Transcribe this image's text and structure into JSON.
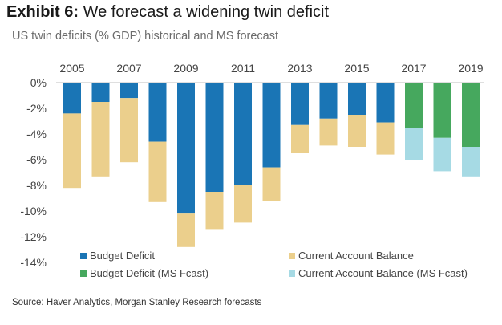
{
  "header": {
    "exhibit": "Exhibit 6:",
    "title": "We forecast a widening twin deficit"
  },
  "footer": {
    "source": "Source: Haver Analytics, Morgan Stanley Research forecasts"
  },
  "colors": {
    "budget": "#1a75b5",
    "current": "#ebcf8c",
    "budget_fcast": "#46a85e",
    "current_fcast": "#a6dae4"
  },
  "chart_data": {
    "type": "bar",
    "stacked": true,
    "title": "US twin deficits (% GDP) historical and MS forecast",
    "xlabel": "",
    "ylabel": "",
    "categories": [
      "2005",
      "2006",
      "2007",
      "2008",
      "2009",
      "2010",
      "2011",
      "2012",
      "2013",
      "2014",
      "2015",
      "2016",
      "2017",
      "2018",
      "2019"
    ],
    "x_tick_labels": [
      "2005",
      "2007",
      "2009",
      "2011",
      "2013",
      "2015",
      "2017",
      "2019"
    ],
    "x_axis_position": "top",
    "y_ticks": [
      0,
      -2,
      -4,
      -6,
      -8,
      -10,
      -12,
      -14
    ],
    "y_tick_labels": [
      "0%",
      "-2%",
      "-4%",
      "-6%",
      "-8%",
      "-10%",
      "-12%",
      "-14%"
    ],
    "ylim": [
      -14,
      0
    ],
    "grid": false,
    "legend_position": "bottom",
    "series": [
      {
        "name": "Budget Deficit",
        "color_key": "budget",
        "values": [
          -2.4,
          -1.5,
          -1.2,
          -4.6,
          -10.2,
          -8.5,
          -8.0,
          -6.6,
          -3.3,
          -2.8,
          -2.5,
          -3.1,
          null,
          null,
          null
        ]
      },
      {
        "name": "Current Account Balance",
        "color_key": "current",
        "values": [
          -5.8,
          -5.8,
          -5.0,
          -4.7,
          -2.6,
          -2.9,
          -2.9,
          -2.6,
          -2.2,
          -2.1,
          -2.5,
          -2.5,
          null,
          null,
          null
        ]
      },
      {
        "name": "Budget Deficit (MS Fcast)",
        "color_key": "budget_fcast",
        "values": [
          null,
          null,
          null,
          null,
          null,
          null,
          null,
          null,
          null,
          null,
          null,
          null,
          -3.5,
          -4.3,
          -5.0
        ]
      },
      {
        "name": "Current Account Balance (MS Fcast)",
        "color_key": "current_fcast",
        "values": [
          null,
          null,
          null,
          null,
          null,
          null,
          null,
          null,
          null,
          null,
          null,
          null,
          -2.5,
          -2.6,
          -2.3
        ]
      }
    ]
  }
}
